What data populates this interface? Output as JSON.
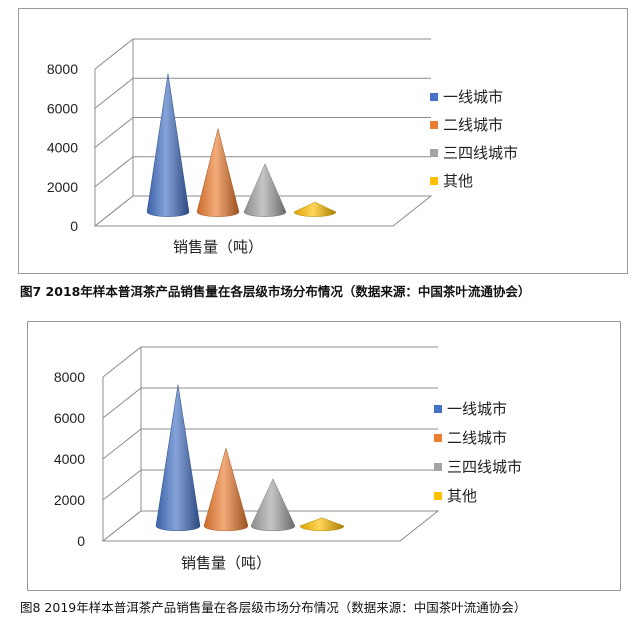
{
  "chart_data": [
    {
      "type": "bar",
      "style": "3d-cone",
      "categories": [
        ""
      ],
      "xlabel": "销售量（吨）",
      "ylim": [
        0,
        8000
      ],
      "yticks": [
        0,
        2000,
        4000,
        6000,
        8000
      ],
      "grid": true,
      "legend_position": "right",
      "series": [
        {
          "name": "一线城市",
          "color": "#4472C4",
          "values": [
            7000
          ]
        },
        {
          "name": "二线城市",
          "color": "#ED7D31",
          "values": [
            4200
          ]
        },
        {
          "name": "三四线城市",
          "color": "#A5A5A5",
          "values": [
            2400
          ]
        },
        {
          "name": "其他",
          "color": "#FFC000",
          "values": [
            450
          ]
        }
      ],
      "caption": "图7    2018年样本普洱茶产品销售量在各层级市场分布情况（数据来源：中国茶叶流通协会）"
    },
    {
      "type": "bar",
      "style": "3d-cone",
      "categories": [
        ""
      ],
      "xlabel": "销售量（吨）",
      "ylim": [
        0,
        8000
      ],
      "yticks": [
        0,
        2000,
        4000,
        6000,
        8000
      ],
      "grid": true,
      "legend_position": "right",
      "series": [
        {
          "name": "一线城市",
          "color": "#4472C4",
          "values": [
            6900
          ]
        },
        {
          "name": "二线城市",
          "color": "#ED7D31",
          "values": [
            3800
          ]
        },
        {
          "name": "三四线城市",
          "color": "#A5A5A5",
          "values": [
            2300
          ]
        },
        {
          "name": "其他",
          "color": "#FFC000",
          "values": [
            400
          ]
        }
      ],
      "caption": "图8 2019年样本普洱茶产品销售量在各层级市场分布情况（数据来源：中国茶叶流通协会）"
    }
  ]
}
